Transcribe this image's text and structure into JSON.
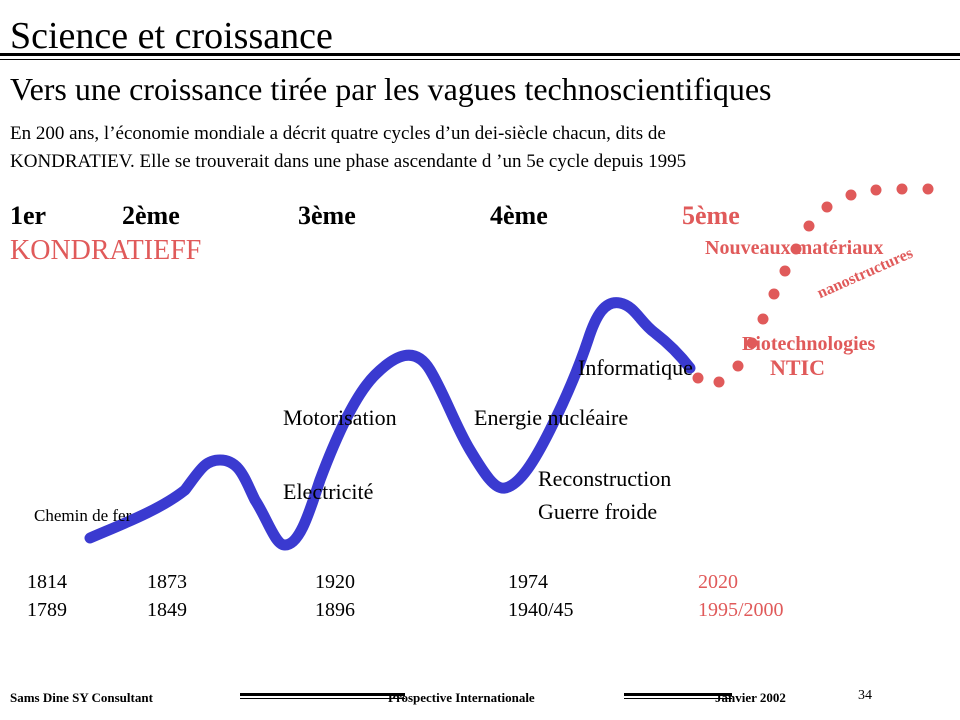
{
  "title": "Science et croissance",
  "subtitle": "Vers une croissance tirée par les vagues technoscientifiques",
  "intro_line1": "En 200 ans, l’économie mondiale a décrit quatre cycles d’un dei-siècle chacun, dits de",
  "intro_line2": "KONDRATIEV.  Elle se trouverait dans une phase ascendante d ’un 5e cycle depuis 1995",
  "cycles": [
    "1er",
    "2ème",
    "3ème",
    "4ème",
    "5ème"
  ],
  "kondratieff": "KONDRATIEFF",
  "labels": {
    "chemin_de_fer": "Chemin de fer",
    "motorisation": "Motorisation",
    "electricite": "Electricité",
    "energie_nucleaire": "Energie nucléaire",
    "reconstruction": "Reconstruction",
    "guerre_froide": "Guerre froide",
    "informatique": "Informatique"
  },
  "new_tech": {
    "nouveaux_materiaux": "Nouveaux matériaux",
    "nanostructures": "nanostructures",
    "biotechnologies": "Biotechnologies",
    "ntic": "NTIC"
  },
  "years_top": [
    "1814",
    "1873",
    "1920",
    "1974",
    "2020"
  ],
  "years_bottom": [
    "1789",
    "1849",
    "1896",
    "1940/45",
    "1995/2000"
  ],
  "colors": {
    "curve": "#3a3ad0",
    "accent": "#e05a5a"
  },
  "footer": {
    "author": "Sams Dine SY Consultant",
    "center": "Prospective Internationale",
    "date": "Janvier 2002",
    "page": "34"
  }
}
